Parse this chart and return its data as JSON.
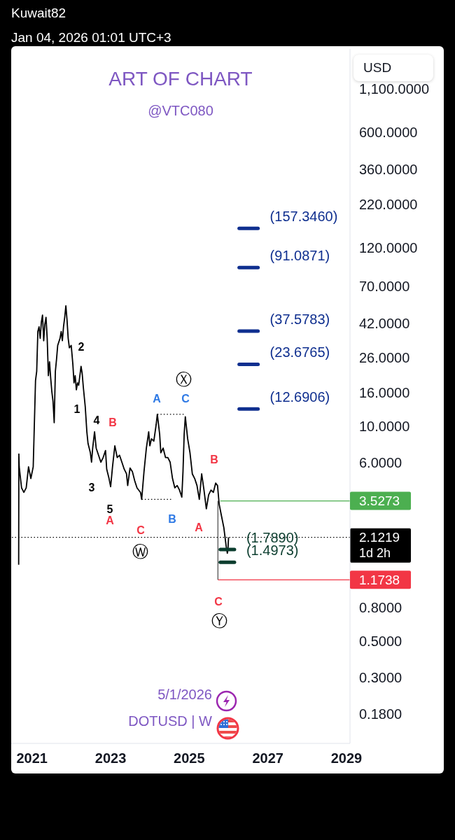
{
  "chart_data": {
    "type": "line",
    "title": "ART OF CHART",
    "subtitle": "@VTC080",
    "ylabel": "USD",
    "log": true,
    "xlim": [
      2020.47,
      2029.09
    ],
    "xticks": [
      2021,
      2023,
      2025,
      2027,
      2029
    ],
    "ylim": [
      0.12,
      1920
    ],
    "yticks": [
      {
        "value": 0.18,
        "label": "0.1800"
      },
      {
        "value": 0.3,
        "label": "0.3000"
      },
      {
        "value": 0.5,
        "label": "0.5000"
      },
      {
        "value": 0.8,
        "label": "0.8000"
      },
      {
        "value": 6,
        "label": "6.0000"
      },
      {
        "value": 10,
        "label": "10.0000"
      },
      {
        "value": 16,
        "label": "16.0000"
      },
      {
        "value": 26,
        "label": "26.0000"
      },
      {
        "value": 42,
        "label": "42.0000"
      },
      {
        "value": 70,
        "label": "70.0000"
      },
      {
        "value": 120,
        "label": "120.0000"
      },
      {
        "value": 220,
        "label": "220.0000"
      },
      {
        "value": 360,
        "label": "360.0000"
      },
      {
        "value": 600,
        "label": "600.0000"
      },
      {
        "value": 1100,
        "label": "1,100.0000"
      }
    ],
    "series": [
      {
        "color": "#000000",
        "x": [
          2020.66,
          2020.665,
          2020.674,
          2020.733,
          2020.792,
          2020.852,
          2020.911,
          2020.97,
          2021.03,
          2021.089,
          2021.119,
          2021.148,
          2021.178,
          2021.208,
          2021.237,
          2021.267,
          2021.297,
          2021.326,
          2021.356,
          2021.386,
          2021.416,
          2021.445,
          2021.475,
          2021.505,
          2021.534,
          2021.564,
          2021.594,
          2021.623,
          2021.653,
          2021.712,
          2021.742,
          2021.772,
          2021.801,
          2021.831,
          2021.861,
          2021.89,
          2021.92,
          2021.95,
          2021.997,
          2022.039,
          2022.068,
          2022.098,
          2022.128,
          2022.158,
          2022.187,
          2022.247,
          2022.276,
          2022.306,
          2022.353,
          2022.395,
          2022.425,
          2022.484,
          2022.514,
          2022.543,
          2022.591,
          2022.632,
          2022.692,
          2022.751,
          2022.81,
          2022.87,
          2022.9,
          2022.959,
          2023.0,
          2023.048,
          2023.107,
          2023.167,
          2023.226,
          2023.286,
          2023.345,
          2023.404,
          2023.434,
          2023.493,
          2023.553,
          2023.612,
          2023.671,
          2023.76,
          2023.79,
          2023.849,
          2023.909,
          2023.968,
          2023.998,
          2024.039,
          2024.099,
          2024.158,
          2024.188,
          2024.247,
          2024.277,
          2024.336,
          2024.396,
          2024.455,
          2024.514,
          2024.574,
          2024.633,
          2024.693,
          2024.752,
          2024.811,
          2024.841,
          2024.871,
          2024.9,
          2024.96,
          2025.019,
          2025.078,
          2025.138,
          2025.197,
          2025.256,
          2025.316,
          2025.375,
          2025.435,
          2025.494,
          2025.553,
          2025.613,
          2025.672,
          2025.72,
          2025.761,
          2025.82,
          2025.88,
          2025.939,
          2025.969,
          2025.985,
          2026.0
        ],
        "values": [
          1.45,
          6.78,
          5.67,
          4.23,
          3.97,
          4.23,
          5.67,
          4.82,
          5.67,
          18.9,
          21.5,
          37.4,
          39.9,
          34.0,
          42.6,
          47.0,
          32.9,
          41.3,
          45.5,
          34.0,
          20.2,
          24.5,
          19.5,
          16.1,
          14.1,
          10.5,
          21.5,
          25.3,
          30.8,
          34.0,
          37.4,
          32.9,
          39.9,
          45.5,
          53.5,
          44.0,
          34.0,
          29.8,
          30.8,
          23.7,
          18.3,
          20.2,
          16.6,
          18.3,
          17.7,
          23.0,
          20.8,
          17.1,
          13.2,
          9.24,
          7.85,
          6.9,
          6.05,
          7.36,
          9.24,
          7.36,
          6.67,
          6.05,
          6.46,
          7.12,
          5.49,
          4.82,
          4.3,
          5.67,
          7.6,
          6.46,
          6.67,
          6.05,
          5.49,
          5.14,
          4.37,
          5.58,
          5.31,
          4.67,
          4.23,
          3.97,
          3.6,
          5.31,
          7.36,
          9.24,
          7.6,
          8.38,
          8.11,
          10.2,
          11.8,
          8.94,
          6.9,
          7.36,
          6.46,
          6.46,
          6.05,
          4.82,
          4.23,
          4.37,
          4.1,
          3.72,
          5.31,
          8.94,
          11.4,
          8.38,
          6.9,
          5.14,
          4.82,
          4.37,
          3.6,
          5.14,
          4.1,
          3.16,
          3.84,
          4.1,
          3.97,
          4.52,
          4.37,
          3.37,
          2.86,
          2.43,
          1.88,
          1.7,
          1.8,
          2.1219
        ]
      },
      {
        "color": "#000000",
        "line_style": "dotted",
        "x": [
          2024.19,
          2024.9
        ],
        "values": [
          11.8,
          11.8
        ]
      },
      {
        "color": "#000000",
        "line_style": "dotted",
        "x": [
          2023.79,
          2024.57
        ],
        "values": [
          3.6,
          3.6
        ]
      },
      {
        "color": "#0f2f8f",
        "x": [
          2026.27,
          2026.75
        ],
        "values": [
          157.346,
          157.346
        ],
        "value_labels": [
          null,
          "(157.3460)"
        ]
      },
      {
        "color": "#0f2f8f",
        "x": [
          2026.27,
          2026.75
        ],
        "values": [
          91.0871,
          91.0871
        ],
        "value_labels": [
          null,
          "(91.0871)"
        ]
      },
      {
        "color": "#0f2f8f",
        "x": [
          2026.27,
          2026.75
        ],
        "values": [
          37.5783,
          37.5783
        ],
        "value_labels": [
          null,
          "(37.5783)"
        ]
      },
      {
        "color": "#0f2f8f",
        "x": [
          2026.27,
          2026.75
        ],
        "values": [
          23.6765,
          23.6765
        ],
        "value_labels": [
          null,
          "(23.6765)"
        ]
      },
      {
        "color": "#0f2f8f",
        "x": [
          2026.27,
          2026.75
        ],
        "values": [
          12.6906,
          12.6906
        ],
        "value_labels": [
          null,
          "(12.6906)"
        ]
      },
      {
        "color": "#0b3d2e",
        "x": [
          2025.79,
          2026.15
        ],
        "values": [
          1.789,
          1.789
        ],
        "value_labels": [
          null,
          "(1.7890)"
        ]
      },
      {
        "color": "#0b3d2e",
        "x": [
          2025.79,
          2026.15
        ],
        "values": [
          1.4973,
          1.4973
        ],
        "value_labels": [
          null,
          "(1.4973)"
        ]
      },
      {
        "color": "#4caf50",
        "x": [
          2025.79,
          2029.09
        ],
        "values": [
          3.5273,
          3.5273
        ],
        "value_labels": [
          null,
          "3.5273"
        ]
      },
      {
        "color": "#f23645",
        "x": [
          2025.73,
          2029.09
        ],
        "values": [
          1.1738,
          1.1738
        ],
        "value_labels": [
          null,
          "1.1738"
        ]
      },
      {
        "color": "#555555",
        "x": [
          2025.73,
          2025.73
        ],
        "values": [
          3.5273,
          1.1738
        ]
      }
    ],
    "ref_lines": [
      {
        "axis": "y",
        "value": 2.1219,
        "label": "2.1219",
        "color": "#000000",
        "line_style": "dotted"
      }
    ],
    "annotations": [
      "Kuwait82",
      "Jan 04, 2026 01:01 UTC+3",
      "2",
      "1",
      "4",
      "B",
      "3",
      "5",
      "A",
      "C",
      "Ⓦ",
      "A",
      "C",
      "Ⓧ",
      "B",
      "A",
      "B",
      "C",
      "Ⓨ",
      "1d 2h",
      "5/1/2026",
      "DOTUSD | W"
    ]
  }
}
